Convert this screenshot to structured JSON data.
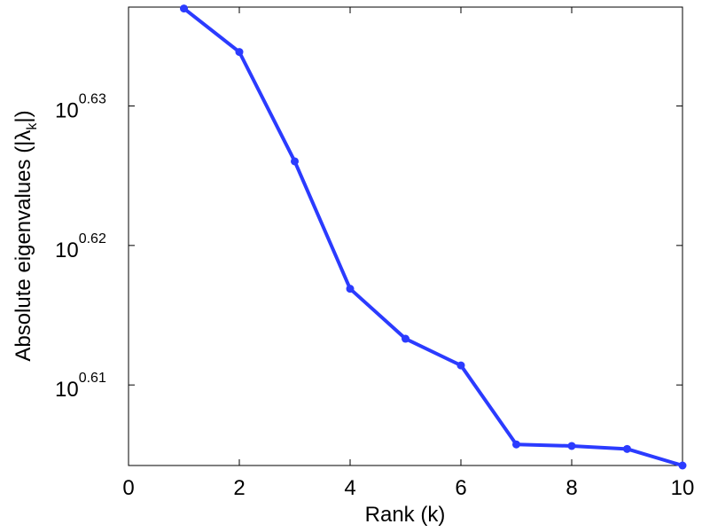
{
  "chart_data": {
    "type": "line",
    "title": "",
    "xlabel": "Rank (k)",
    "ylabel": "Absolute eigenvalues (|λ",
    "ylabel_sub": "k",
    "ylabel_end": "|)",
    "yscale": "log",
    "x": [
      1,
      2,
      3,
      4,
      5,
      6,
      7,
      8,
      9,
      10
    ],
    "series": [
      {
        "name": "eigenvalues",
        "color": "#2b3bff",
        "values": [
          4.335,
          4.304,
          4.227,
          4.139,
          4.105,
          4.087,
          4.034,
          4.033,
          4.031,
          4.02
        ]
      }
    ],
    "xlim": [
      0,
      10
    ],
    "ylim": [
      4.02,
      4.336
    ],
    "xticks": [
      0,
      2,
      4,
      6,
      8,
      10
    ],
    "xtick_labels": [
      "0",
      "2",
      "4",
      "6",
      "8",
      "10"
    ],
    "yticks_log10": [
      0.61,
      0.62,
      0.63
    ],
    "ytick_base": "10",
    "ytick_exponents": [
      "0.61",
      "0.62",
      "0.63"
    ],
    "grid": false
  }
}
